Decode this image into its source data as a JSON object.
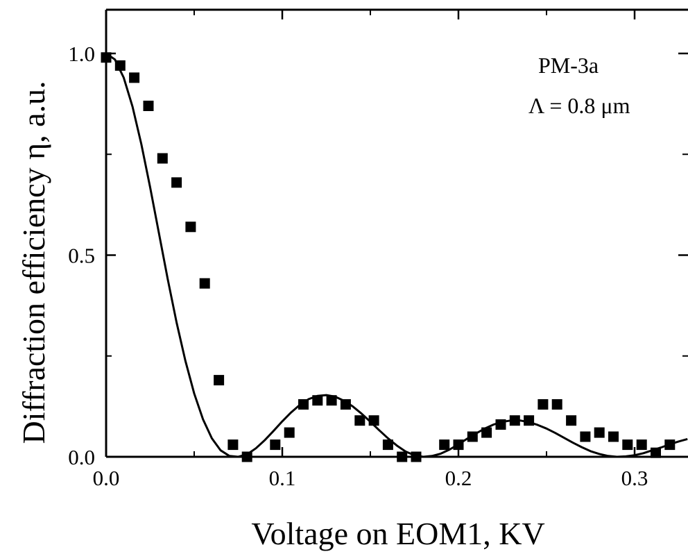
{
  "chart_data": {
    "type": "scatter",
    "title": "",
    "xlabel": "Voltage on EOM1, KV",
    "ylabel": "Diffraction efficiency  η, a.u.",
    "xlim": [
      0.0,
      0.33
    ],
    "ylim": [
      0.0,
      1.1
    ],
    "x_ticks": [
      0.0,
      0.1,
      0.2,
      0.3
    ],
    "x_tick_labels": [
      "0.0",
      "0.1",
      "0.2",
      "0.3"
    ],
    "y_ticks": [
      0.0,
      0.5,
      1.0
    ],
    "y_tick_labels": [
      "0.0",
      "0.5",
      "1.0"
    ],
    "grid": false,
    "annotations": [
      "PM-3a",
      "Λ = 0.8 μm"
    ],
    "series": [
      {
        "kind": "scatter",
        "marker": "filled-square",
        "x": [
          0.0,
          0.008,
          0.016,
          0.024,
          0.032,
          0.04,
          0.048,
          0.056,
          0.064,
          0.072,
          0.08,
          0.096,
          0.104,
          0.112,
          0.12,
          0.128,
          0.136,
          0.144,
          0.152,
          0.16,
          0.168,
          0.176,
          0.192,
          0.2,
          0.208,
          0.216,
          0.224,
          0.232,
          0.24,
          0.248,
          0.256,
          0.264,
          0.272,
          0.28,
          0.288,
          0.296,
          0.304,
          0.312,
          0.32
        ],
        "y": [
          0.99,
          0.97,
          0.94,
          0.87,
          0.74,
          0.68,
          0.57,
          0.43,
          0.19,
          0.03,
          0.0,
          0.03,
          0.06,
          0.13,
          0.14,
          0.14,
          0.13,
          0.09,
          0.09,
          0.03,
          0.0,
          0.0,
          0.03,
          0.03,
          0.05,
          0.06,
          0.08,
          0.09,
          0.09,
          0.13,
          0.13,
          0.09,
          0.05,
          0.06,
          0.05,
          0.03,
          0.03,
          0.01,
          0.03
        ]
      },
      {
        "kind": "line",
        "x": [
          0.0,
          0.005,
          0.01,
          0.015,
          0.02,
          0.025,
          0.03,
          0.035,
          0.04,
          0.045,
          0.05,
          0.055,
          0.06,
          0.065,
          0.07,
          0.075,
          0.08,
          0.085,
          0.09,
          0.095,
          0.1,
          0.105,
          0.11,
          0.115,
          0.12,
          0.125,
          0.13,
          0.135,
          0.14,
          0.145,
          0.15,
          0.155,
          0.16,
          0.165,
          0.17,
          0.175,
          0.18,
          0.185,
          0.19,
          0.195,
          0.2,
          0.205,
          0.21,
          0.215,
          0.22,
          0.225,
          0.23,
          0.235,
          0.24,
          0.245,
          0.25,
          0.255,
          0.26,
          0.265,
          0.27,
          0.275,
          0.28,
          0.285,
          0.29,
          0.295,
          0.3,
          0.305,
          0.31,
          0.315,
          0.32,
          0.325,
          0.33
        ],
        "y": [
          1.0,
          0.985,
          0.94,
          0.868,
          0.775,
          0.668,
          0.554,
          0.44,
          0.333,
          0.238,
          0.157,
          0.093,
          0.046,
          0.016,
          0.002,
          0.0,
          0.006,
          0.021,
          0.041,
          0.064,
          0.088,
          0.11,
          0.129,
          0.143,
          0.151,
          0.153,
          0.149,
          0.139,
          0.125,
          0.107,
          0.087,
          0.066,
          0.046,
          0.028,
          0.013,
          0.004,
          0.0,
          0.002,
          0.008,
          0.018,
          0.031,
          0.045,
          0.058,
          0.07,
          0.08,
          0.087,
          0.09,
          0.09,
          0.086,
          0.079,
          0.07,
          0.059,
          0.047,
          0.035,
          0.024,
          0.014,
          0.007,
          0.002,
          0.0,
          0.001,
          0.004,
          0.009,
          0.016,
          0.023,
          0.031,
          0.038,
          0.044
        ]
      }
    ]
  }
}
